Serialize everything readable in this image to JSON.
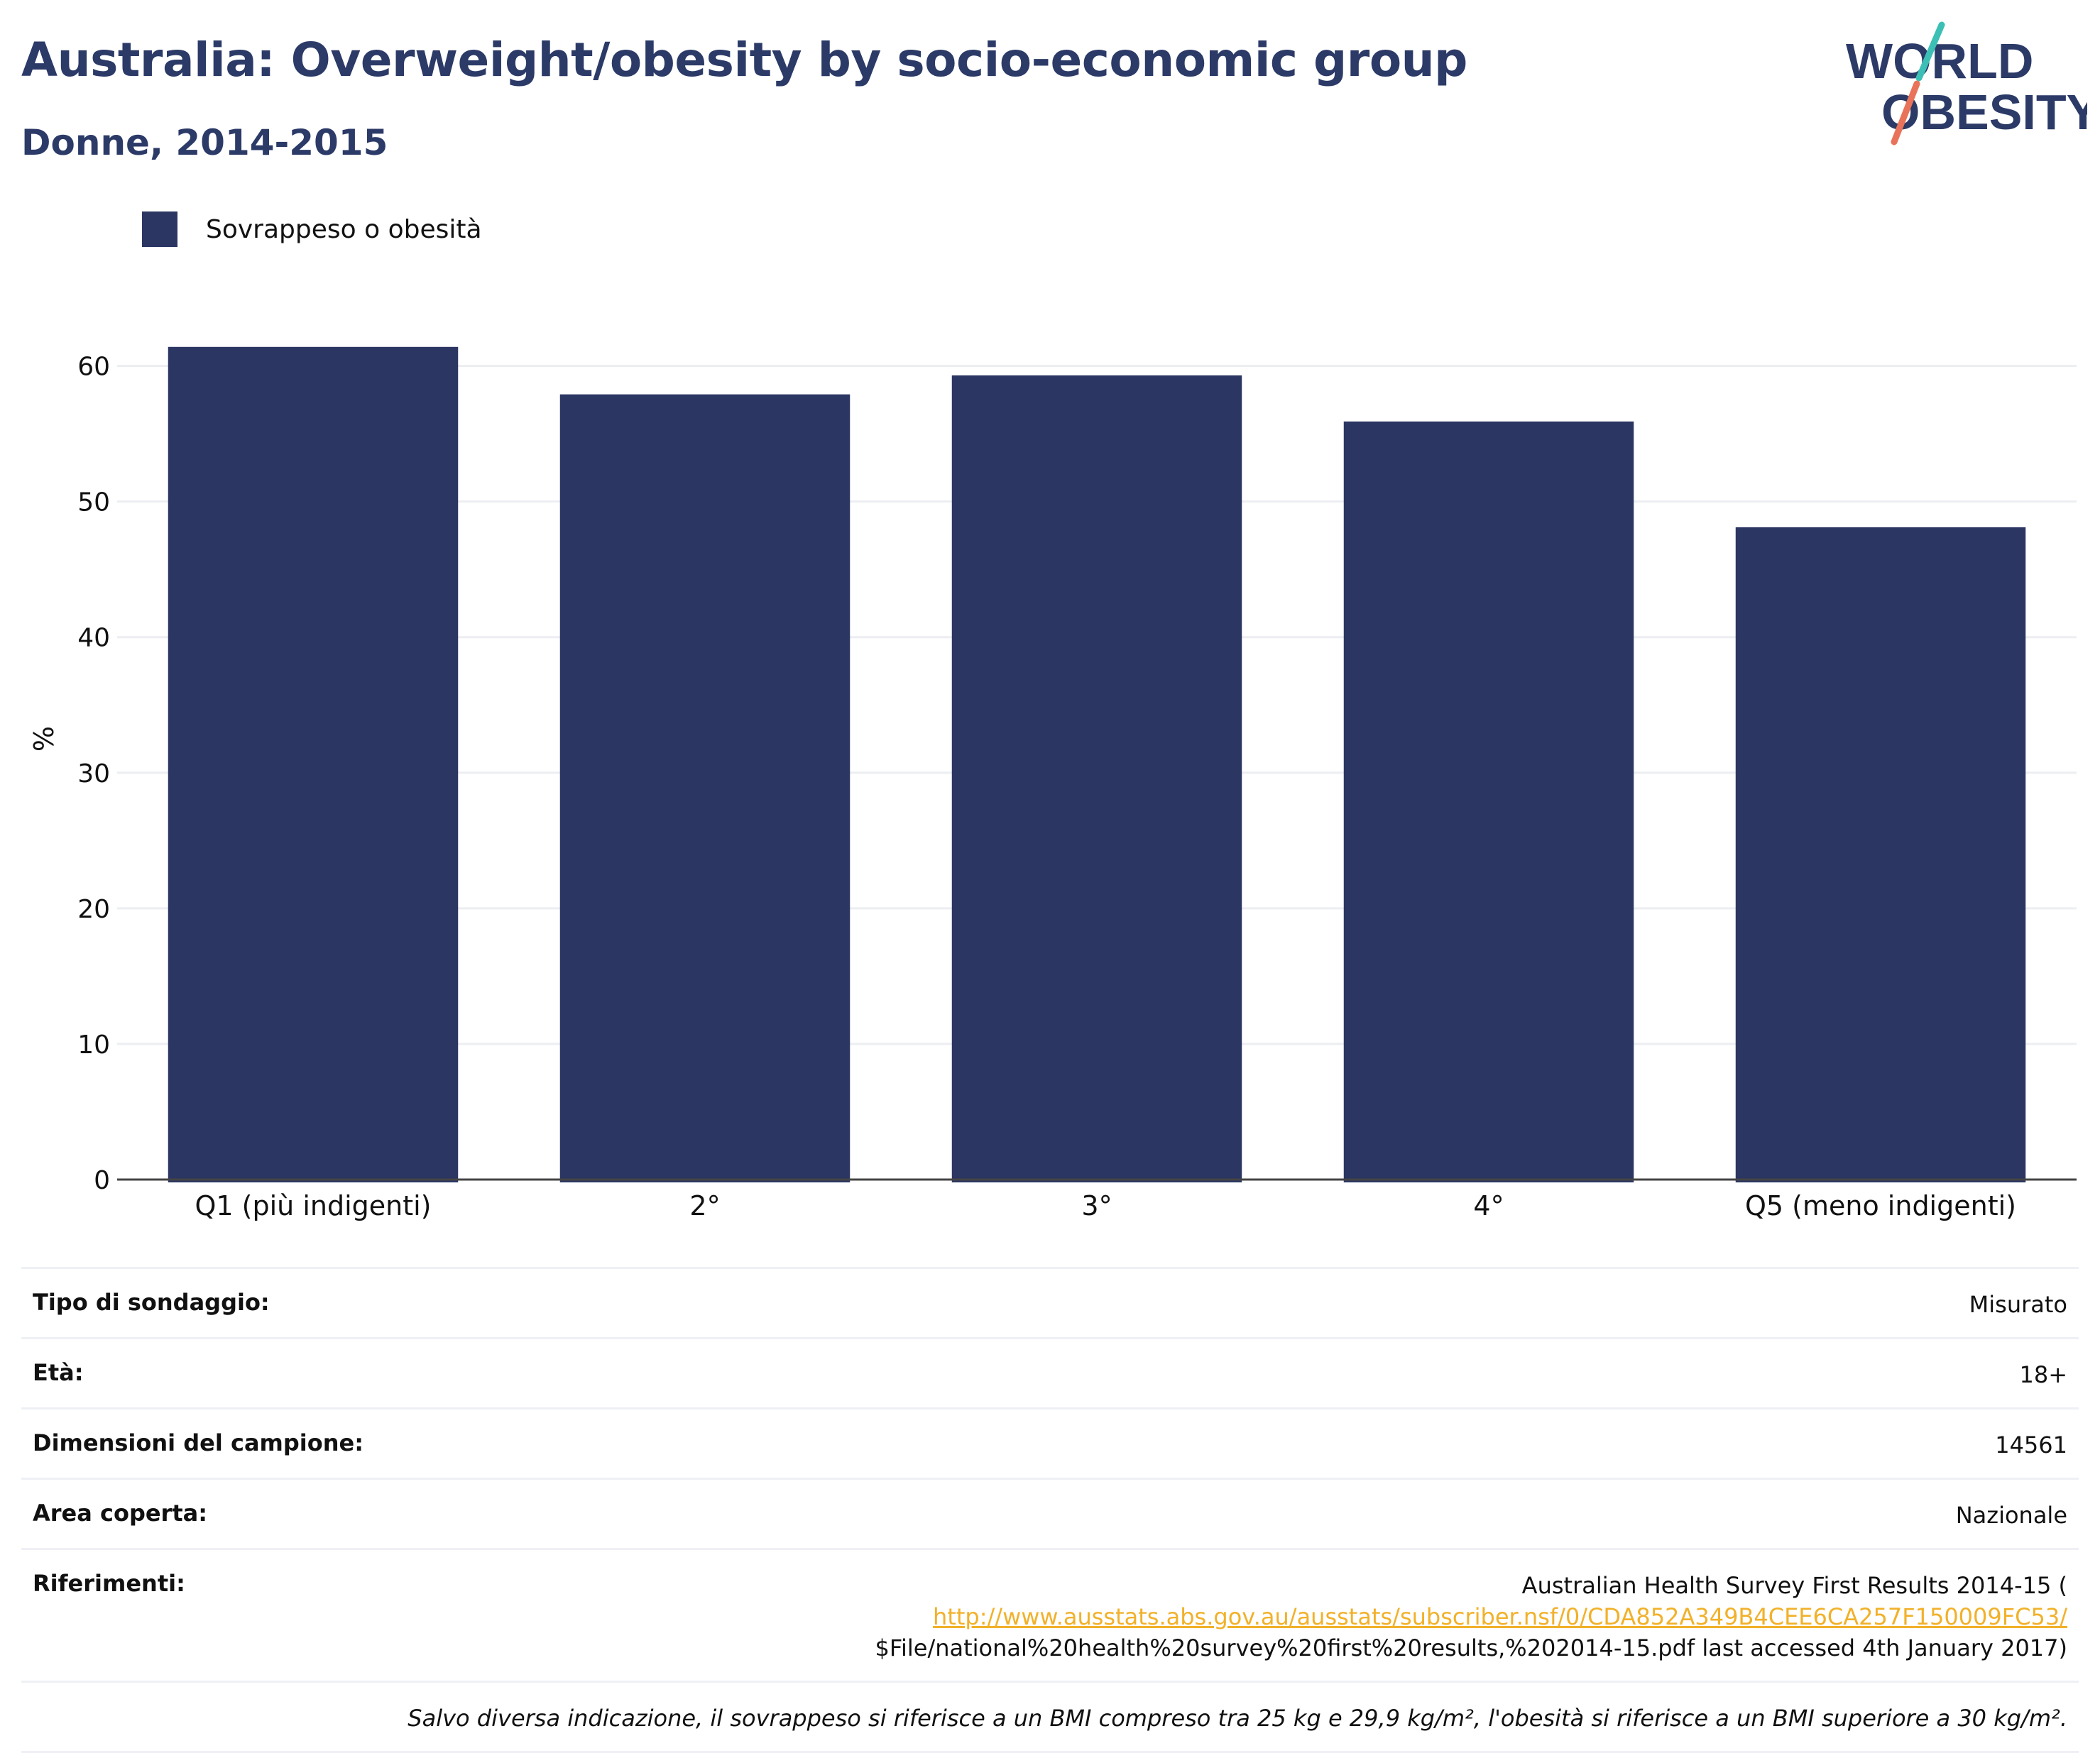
{
  "header": {
    "title": "Australia: Overweight/obesity by socio-economic group",
    "subtitle": "Donne, 2014-2015"
  },
  "logo": {
    "line1": "WORLD",
    "line2": "OBESITY"
  },
  "colors": {
    "bar": "#2b3662",
    "title": "#2b3a67",
    "grid": "#eceef2",
    "link": "#f1b12a",
    "logo_teal": "#3cbfb5",
    "logo_coral": "#e8735a"
  },
  "chart_data": {
    "type": "bar",
    "categories": [
      "Q1 (più indigenti)",
      "2°",
      "3°",
      "4°",
      "Q5 (meno indigenti)"
    ],
    "series": [
      {
        "name": "Sovrappeso o obesità",
        "values": [
          61.4,
          57.9,
          59.3,
          55.9,
          48.1
        ]
      }
    ],
    "ylabel": "%",
    "ylim": [
      0,
      65
    ],
    "yticks": [
      0,
      10,
      20,
      30,
      40,
      50,
      60
    ],
    "grid": true,
    "legend_position": "top-left"
  },
  "info": {
    "survey_type_label": "Tipo di sondaggio:",
    "survey_type_value": "Misurato",
    "age_label": "Età:",
    "age_value": "18+",
    "sample_label": "Dimensioni del campione:",
    "sample_value": "14561",
    "area_label": "Area coperta:",
    "area_value": "Nazionale",
    "refs_label": "Riferimenti:",
    "refs_line1": "Australian Health Survey First Results 2014-15 (",
    "refs_link": "http://www.ausstats.abs.gov.au/ausstats/subscriber.nsf/0/CDA852A349B4CEE6CA257F150009FC53/",
    "refs_line3": "$File/national%20health%20survey%20first%20results,%202014-15.pdf last accessed 4th January 2017)",
    "footnote": "Salvo diversa indicazione, il sovrappeso si riferisce a un BMI compreso tra 25 kg e 29,9 kg/m², l'obesità si riferisce a un BMI superiore a 30 kg/m²."
  }
}
